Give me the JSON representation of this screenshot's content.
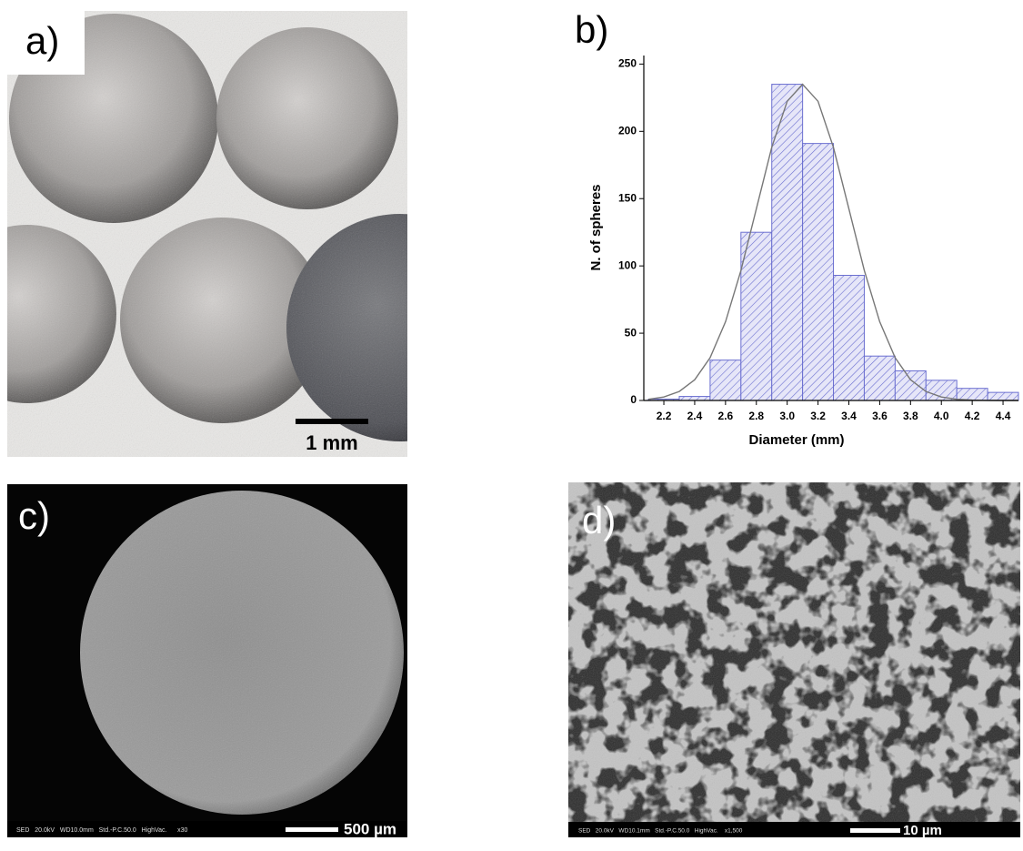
{
  "panels": [
    {
      "label": "a)",
      "scale_bar": "1 mm"
    },
    {
      "label": "b)"
    },
    {
      "label": "c)",
      "info": "SED   20.0kV   WD10.0mm   Std.-P.C.50.0   HighVac.      x30",
      "scale_bar": "500 µm"
    },
    {
      "label": "d)",
      "info": "SED   20.0kV   WD10.1mm   Std.-P.C.50.0   HighVac.    x1,500",
      "scale_bar": "10 µm"
    }
  ],
  "chart_data": {
    "type": "histogram",
    "x_label": "Diameter (mm)",
    "y_label": "N. of spheres",
    "bins": [
      2.1,
      2.3,
      2.5,
      2.7,
      2.9,
      3.1,
      3.3,
      3.5,
      3.7,
      3.9,
      4.1,
      4.3,
      4.5
    ],
    "values": [
      1,
      3,
      30,
      125,
      235,
      191,
      93,
      33,
      22,
      15,
      9,
      6
    ],
    "color": "#6b6fd0",
    "fit": {
      "color": "#777777",
      "x": [
        2.1,
        2.2,
        2.3,
        2.4,
        2.5,
        2.6,
        2.7,
        2.8,
        2.9,
        3.0,
        3.1,
        3.2,
        3.3,
        3.4,
        3.5,
        3.6,
        3.7,
        3.8,
        3.9,
        4.0,
        4.1,
        4.2,
        4.3,
        4.4,
        4.5
      ],
      "values": [
        0.9,
        2.6,
        6.7,
        15.4,
        31.8,
        58.6,
        96.6,
        142.5,
        188.2,
        222.3,
        235,
        222.3,
        188.2,
        142.5,
        96.6,
        58.6,
        31.8,
        15.4,
        6.7,
        2.6,
        0.9,
        0.3,
        0.1,
        0,
        0
      ]
    },
    "xlim": [
      2.07,
      4.5
    ],
    "ylim": [
      0,
      255
    ],
    "xticks": [
      2.2,
      2.4,
      2.6,
      2.8,
      {
        "value": 3,
        "label": "3.0"
      },
      3.2,
      3.4,
      3.6,
      3.8,
      {
        "value": 4,
        "label": "4.0"
      },
      4.2,
      4.4
    ],
    "yticks": [
      0,
      50,
      100,
      150,
      200,
      250
    ]
  }
}
